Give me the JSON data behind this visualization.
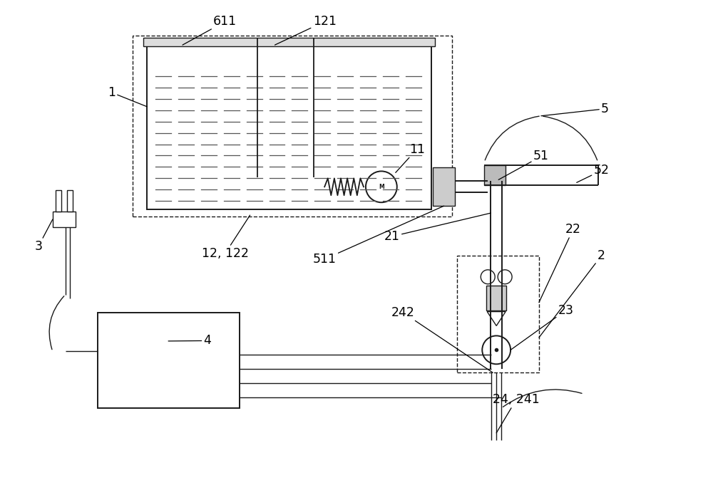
{
  "bg_color": "#ffffff",
  "line_color": "#1a1a1a",
  "fig_width": 10.0,
  "fig_height": 6.74
}
